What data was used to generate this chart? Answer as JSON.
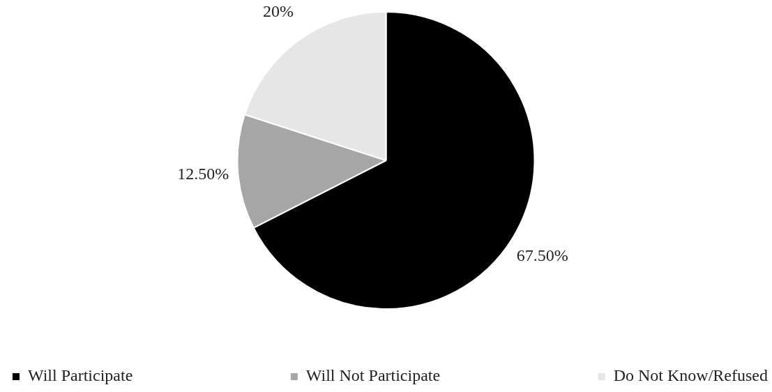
{
  "chart_data": {
    "type": "pie",
    "categories": [
      "Will Participate",
      "Will Not Participate",
      "Do Not Know/Refused"
    ],
    "values": [
      67.5,
      12.5,
      20
    ],
    "colors": [
      "#000000",
      "#a6a6a6",
      "#e6e6e6"
    ],
    "value_labels": [
      "67.50%",
      "12.50%",
      "20%"
    ],
    "legend": "bottom"
  }
}
